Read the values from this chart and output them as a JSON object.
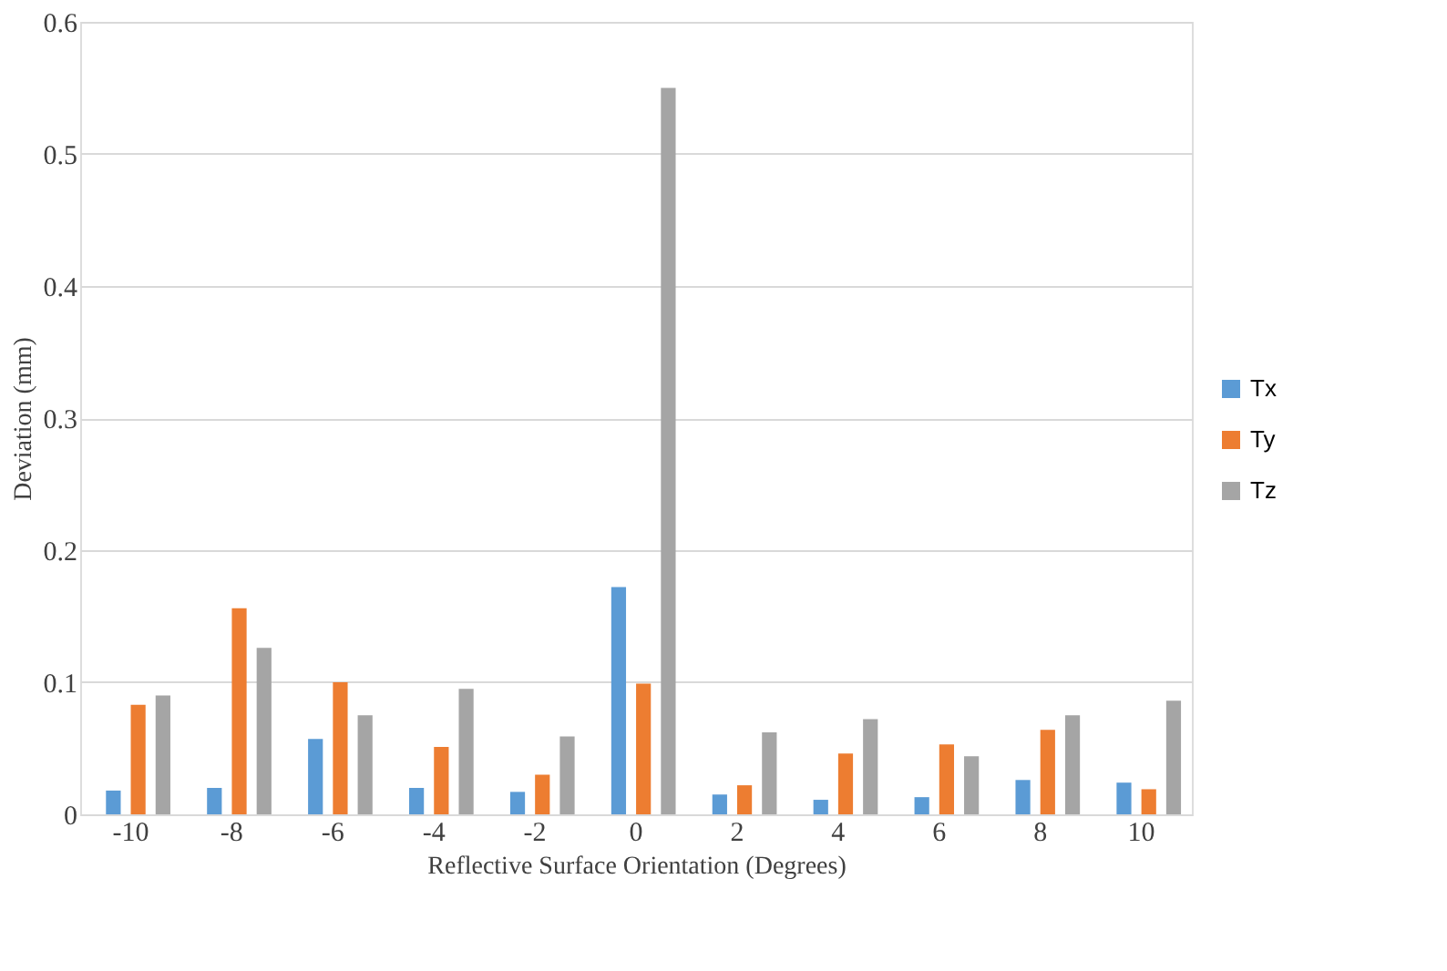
{
  "chart_data": {
    "type": "bar",
    "xlabel": "Reflective Surface Orientation (Degrees)",
    "ylabel": "Deviation (mm)",
    "categories": [
      "-10",
      "-8",
      "-6",
      "-4",
      "-2",
      "0",
      "2",
      "4",
      "6",
      "8",
      "10"
    ],
    "series": [
      {
        "name": "Tx",
        "color": "#5b9bd5",
        "values": [
          0.018,
          0.02,
          0.057,
          0.02,
          0.017,
          0.172,
          0.015,
          0.011,
          0.013,
          0.026,
          0.024
        ]
      },
      {
        "name": "Ty",
        "color": "#ed7d31",
        "values": [
          0.083,
          0.156,
          0.1,
          0.051,
          0.03,
          0.099,
          0.022,
          0.046,
          0.053,
          0.064,
          0.019
        ]
      },
      {
        "name": "Tz",
        "color": "#a5a5a5",
        "values": [
          0.09,
          0.126,
          0.075,
          0.095,
          0.059,
          0.55,
          0.062,
          0.072,
          0.044,
          0.075,
          0.086
        ]
      }
    ],
    "ylim": [
      0,
      0.6
    ],
    "yticks": [
      0,
      0.1,
      0.2,
      0.3,
      0.4,
      0.5,
      0.6
    ],
    "grid": "y",
    "legend": "right"
  }
}
